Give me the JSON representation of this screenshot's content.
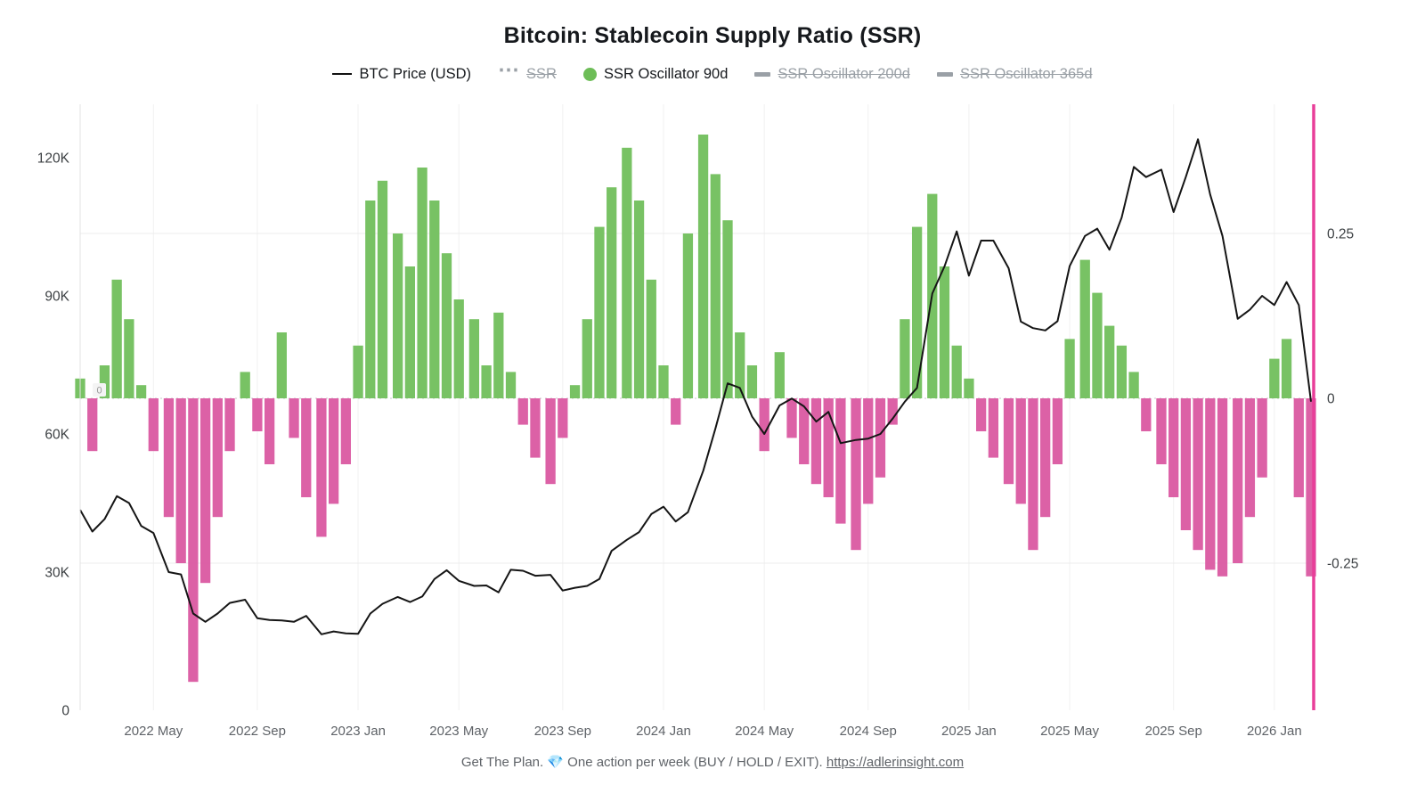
{
  "title": "Bitcoin: Stablecoin Supply Ratio (SSR)",
  "legend": {
    "items": [
      {
        "label": "BTC Price (USD)",
        "marker": "line",
        "color": "#111111",
        "active": true
      },
      {
        "label": "SSR",
        "marker": "dots",
        "color": "#9aa0a6",
        "active": false
      },
      {
        "label": "SSR Oscillator 90d",
        "marker": "circle",
        "color": "#6dbd57",
        "active": true
      },
      {
        "label": "SSR Oscillator 200d",
        "marker": "thick-line",
        "color": "#9aa0a6",
        "active": false
      },
      {
        "label": "SSR Oscillator 365d",
        "marker": "thick-line",
        "color": "#9aa0a6",
        "active": false
      }
    ]
  },
  "footer": {
    "text": "Get The Plan. 💎 One action per week (BUY / HOLD / EXIT).",
    "link": "https://adlerinsight.com"
  },
  "chart_data": {
    "type": "combo",
    "title": "Bitcoin: Stablecoin Supply Ratio (SSR)",
    "x_unit": "decimal_year",
    "legend_position": "top",
    "grid": {
      "vertical_at_x_ticks": true,
      "horizontal_at_right_ticks": true
    },
    "x": [
      2022.09,
      2022.13,
      2022.17,
      2022.21,
      2022.25,
      2022.29,
      2022.33,
      2022.38,
      2022.42,
      2022.46,
      2022.5,
      2022.54,
      2022.58,
      2022.63,
      2022.67,
      2022.71,
      2022.75,
      2022.79,
      2022.83,
      2022.88,
      2022.92,
      2022.96,
      2023.0,
      2023.04,
      2023.08,
      2023.13,
      2023.17,
      2023.21,
      2023.25,
      2023.29,
      2023.33,
      2023.38,
      2023.42,
      2023.46,
      2023.5,
      2023.54,
      2023.58,
      2023.63,
      2023.67,
      2023.71,
      2023.75,
      2023.79,
      2023.83,
      2023.88,
      2023.92,
      2023.96,
      2024.0,
      2024.04,
      2024.08,
      2024.13,
      2024.17,
      2024.21,
      2024.25,
      2024.29,
      2024.33,
      2024.38,
      2024.42,
      2024.46,
      2024.5,
      2024.54,
      2024.58,
      2024.63,
      2024.67,
      2024.71,
      2024.75,
      2024.79,
      2024.83,
      2024.88,
      2024.92,
      2024.96,
      2025.0,
      2025.04,
      2025.08,
      2025.13,
      2025.17,
      2025.21,
      2025.25,
      2025.29,
      2025.33,
      2025.38,
      2025.42,
      2025.46,
      2025.5,
      2025.54,
      2025.58,
      2025.63,
      2025.67,
      2025.71,
      2025.75,
      2025.79,
      2025.83,
      2025.88,
      2025.92,
      2025.96,
      2026.0,
      2026.04,
      2026.08,
      2026.12
    ],
    "series": [
      {
        "name": "BTC Price (USD)",
        "type": "line",
        "axis": "left",
        "color": "#151515",
        "values": [
          43500,
          38800,
          41500,
          46500,
          45000,
          40000,
          38500,
          30000,
          29500,
          21000,
          19200,
          21000,
          23300,
          24000,
          20000,
          19600,
          19500,
          19200,
          20500,
          16500,
          17100,
          16700,
          16600,
          21000,
          23100,
          24600,
          23500,
          24700,
          28500,
          30400,
          28100,
          27000,
          27100,
          25600,
          30500,
          30300,
          29200,
          29400,
          26000,
          26600,
          27000,
          28500,
          34600,
          37000,
          38700,
          42600,
          44200,
          41000,
          43000,
          52000,
          61200,
          71000,
          70000,
          63800,
          60000,
          66200,
          67700,
          66000,
          62700,
          64800,
          58000,
          58700,
          59000,
          60000,
          63300,
          67000,
          70000,
          90500,
          96400,
          104000,
          94400,
          102000,
          102000,
          96000,
          84400,
          83000,
          82500,
          84500,
          96500,
          103000,
          104600,
          100000,
          107000,
          118000,
          115800,
          117400,
          108200,
          115800,
          124000,
          112000,
          103000,
          85000,
          87000,
          90000,
          88000,
          93000,
          88000,
          67000
        ]
      },
      {
        "name": "SSR Oscillator 90d",
        "type": "bar",
        "axis": "right",
        "positive_color": "#6dbd57",
        "negative_color": "#d9549e",
        "values": [
          0.03,
          -0.08,
          0.05,
          0.18,
          0.12,
          0.02,
          -0.08,
          -0.18,
          -0.25,
          -0.43,
          -0.28,
          -0.18,
          -0.08,
          0.04,
          -0.05,
          -0.1,
          0.1,
          -0.06,
          -0.15,
          -0.21,
          -0.16,
          -0.1,
          0.08,
          0.3,
          0.33,
          0.25,
          0.2,
          0.35,
          0.3,
          0.22,
          0.15,
          0.12,
          0.05,
          0.13,
          0.04,
          -0.04,
          -0.09,
          -0.13,
          -0.06,
          0.02,
          0.12,
          0.26,
          0.32,
          0.38,
          0.3,
          0.18,
          0.05,
          -0.04,
          0.25,
          0.4,
          0.34,
          0.27,
          0.1,
          0.05,
          -0.08,
          0.07,
          -0.06,
          -0.1,
          -0.13,
          -0.15,
          -0.19,
          -0.23,
          -0.16,
          -0.12,
          -0.04,
          0.12,
          0.26,
          0.31,
          0.2,
          0.08,
          0.03,
          -0.05,
          -0.09,
          -0.13,
          -0.16,
          -0.23,
          -0.18,
          -0.1,
          0.09,
          0.21,
          0.16,
          0.11,
          0.08,
          0.04,
          -0.05,
          -0.1,
          -0.15,
          -0.2,
          -0.23,
          -0.26,
          -0.27,
          -0.25,
          -0.18,
          -0.12,
          0.06,
          0.09,
          -0.15,
          -0.27
        ]
      }
    ],
    "left_axis": {
      "label": "BTC Price (USD)",
      "range": [
        0,
        131600
      ],
      "ticks": [
        {
          "label": "0",
          "value": 0
        },
        {
          "label": "30K",
          "value": 30000
        },
        {
          "label": "60K",
          "value": 60000
        },
        {
          "label": "90K",
          "value": 90000
        },
        {
          "label": "120K",
          "value": 120000
        }
      ]
    },
    "right_axis": {
      "label": "SSR Oscillator 90d",
      "range": [
        -0.47,
        0.44
      ],
      "axis_color": "#e83e99",
      "inner_zero_label": "0",
      "ticks": [
        {
          "label": "0.25",
          "value": 0.25
        },
        {
          "label": "0",
          "value": 0
        },
        {
          "label": "-0.25",
          "value": -0.25
        }
      ]
    },
    "x_ticks": [
      {
        "label": "2022 May",
        "t": 2022.33
      },
      {
        "label": "2022 Sep",
        "t": 2022.67
      },
      {
        "label": "2023 Jan",
        "t": 2023.0
      },
      {
        "label": "2023 May",
        "t": 2023.33
      },
      {
        "label": "2023 Sep",
        "t": 2023.67
      },
      {
        "label": "2024 Jan",
        "t": 2024.0
      },
      {
        "label": "2024 May",
        "t": 2024.33
      },
      {
        "label": "2024 Sep",
        "t": 2024.67
      },
      {
        "label": "2025 Jan",
        "t": 2025.0
      },
      {
        "label": "2025 May",
        "t": 2025.33
      },
      {
        "label": "2025 Sep",
        "t": 2025.67
      },
      {
        "label": "2026 Jan",
        "t": 2026.0
      }
    ]
  }
}
